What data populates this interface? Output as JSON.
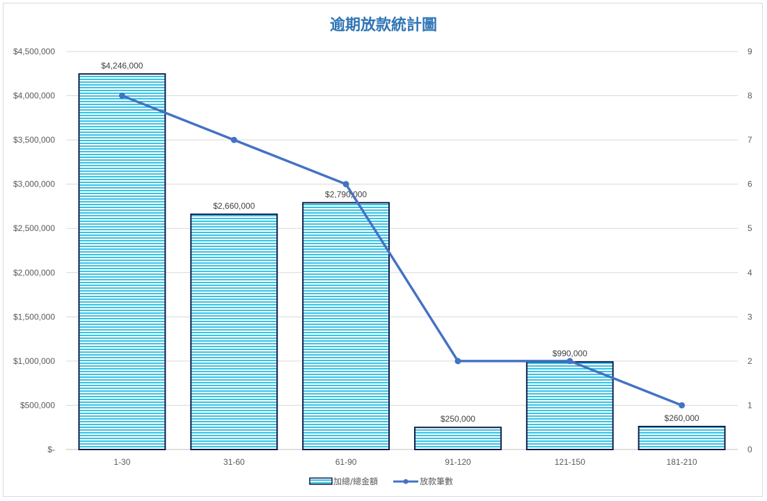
{
  "chart_data": {
    "type": "bar+line",
    "title": "逾期放款統計圖",
    "categories": [
      "1-30",
      "31-60",
      "61-90",
      "91-120",
      "121-150",
      "181-210"
    ],
    "series": [
      {
        "name": "加總/總金額",
        "type": "bar",
        "axis": "left",
        "values": [
          4246000,
          2660000,
          2790000,
          250000,
          990000,
          260000
        ],
        "labels": [
          "$4,246,000",
          "$2,660,000",
          "$2,790,000",
          "$250,000",
          "$990,000",
          "$260,000"
        ],
        "color": "#33c4e6",
        "border_color": "#0d1b4c"
      },
      {
        "name": "放款筆數",
        "type": "line",
        "axis": "right",
        "values": [
          8,
          7,
          6,
          2,
          2,
          1
        ],
        "color": "#4472c4"
      }
    ],
    "y_left": {
      "ylim": [
        0,
        4500000
      ],
      "ticks": [
        0,
        500000,
        1000000,
        1500000,
        2000000,
        2500000,
        3000000,
        3500000,
        4000000,
        4500000
      ],
      "tick_labels": [
        "$-",
        "$500,000",
        "$1,000,000",
        "$1,500,000",
        "$2,000,000",
        "$2,500,000",
        "$3,000,000",
        "$3,500,000",
        "$4,000,000",
        "$4,500,000"
      ]
    },
    "y_right": {
      "ylim": [
        0,
        9
      ],
      "ticks": [
        0,
        1,
        2,
        3,
        4,
        5,
        6,
        7,
        8,
        9
      ],
      "tick_labels": [
        "0",
        "1",
        "2",
        "3",
        "4",
        "5",
        "6",
        "7",
        "8",
        "9"
      ]
    },
    "grid": true,
    "legend_position": "bottom",
    "title_color": "#2f75b5",
    "grid_color": "#d9d9d9"
  }
}
